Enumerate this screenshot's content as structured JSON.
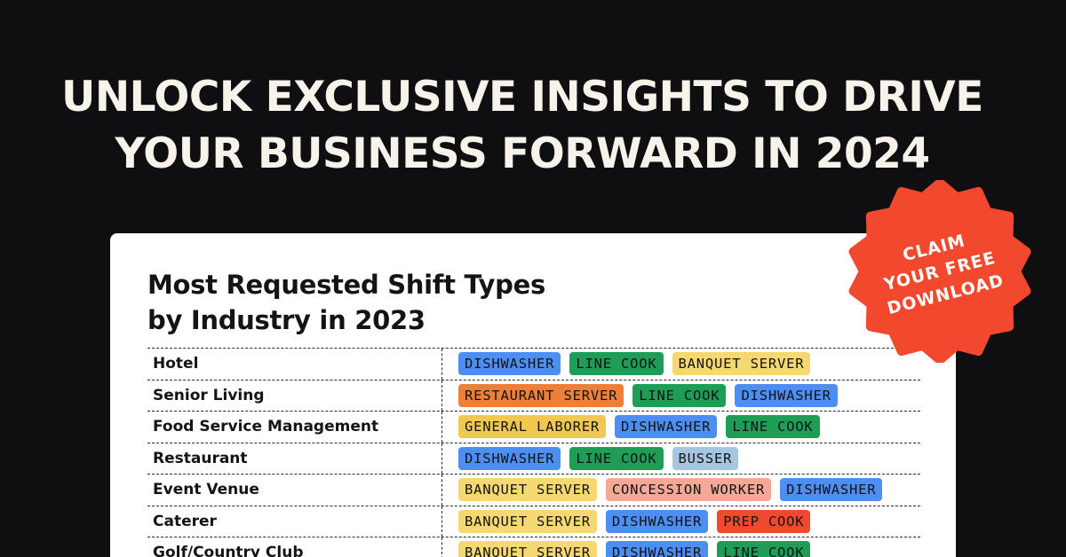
{
  "headline": {
    "line1": "UNLOCK EXCLUSIVE INSIGHTS TO DRIVE",
    "line2": "YOUR BUSINESS FORWARD IN 2024"
  },
  "card": {
    "title_line1": "Most Requested Shift Types",
    "title_line2": "by Industry in 2023"
  },
  "badge": {
    "line1": "CLAIM",
    "line2": "YOUR FREE",
    "line3": "DOWNLOAD",
    "color": "#f2492e"
  },
  "tag_colors": {
    "DISHWASHER": "#4d8ef2",
    "LINE COOK": "#1f9d57",
    "BANQUET SERVER": "#f6d872",
    "RESTAURANT SERVER": "#ee7f3a",
    "GENERAL LABORER": "#f1c84f",
    "BUSSER": "#a6c6e0",
    "CONCESSION WORKER": "#f5a896",
    "PREP COOK": "#f2492e"
  },
  "rows": [
    {
      "industry": "Hotel",
      "tags": [
        "DISHWASHER",
        "LINE COOK",
        "BANQUET SERVER"
      ]
    },
    {
      "industry": "Senior Living",
      "tags": [
        "RESTAURANT SERVER",
        "LINE COOK",
        "DISHWASHER"
      ]
    },
    {
      "industry": "Food Service Management",
      "tags": [
        "GENERAL LABORER",
        "DISHWASHER",
        "LINE COOK"
      ]
    },
    {
      "industry": "Restaurant",
      "tags": [
        "DISHWASHER",
        "LINE COOK",
        "BUSSER"
      ]
    },
    {
      "industry": "Event Venue",
      "tags": [
        "BANQUET SERVER",
        "CONCESSION WORKER",
        "DISHWASHER"
      ]
    },
    {
      "industry": "Caterer",
      "tags": [
        "BANQUET SERVER",
        "DISHWASHER",
        "PREP COOK"
      ]
    },
    {
      "industry": "Golf/Country Club",
      "tags": [
        "BANQUET SERVER",
        "DISHWASHER",
        "LINE COOK"
      ]
    }
  ]
}
